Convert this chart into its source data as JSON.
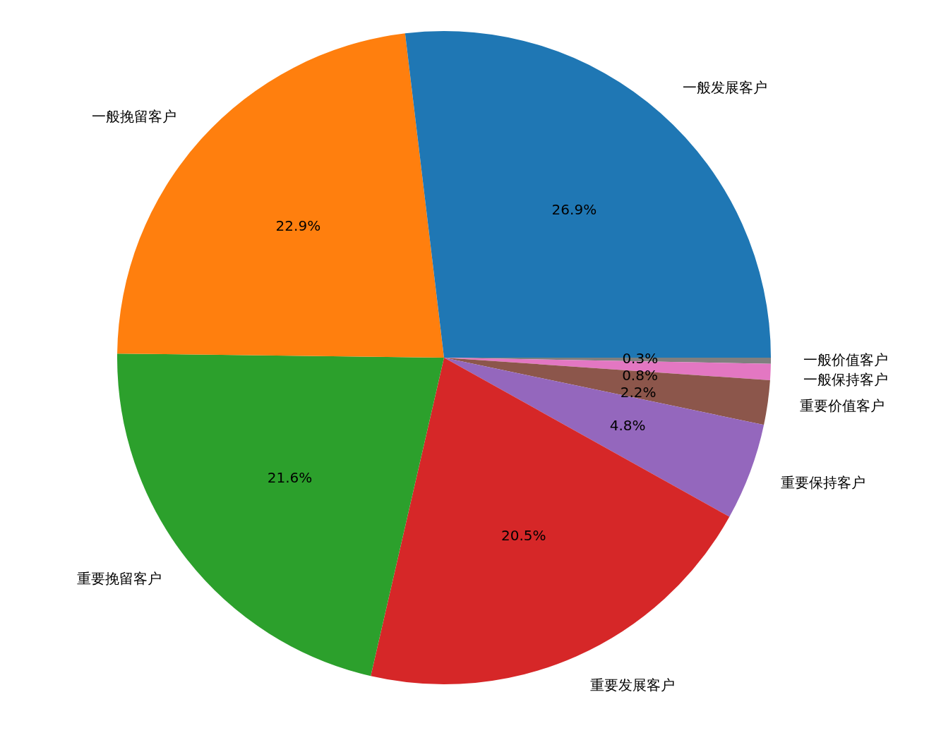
{
  "chart_data": {
    "type": "pie",
    "categories": [
      "一般发展客户",
      "一般挽留客户",
      "重要挽留客户",
      "重要发展客户",
      "重要保持客户",
      "重要价值客户",
      "一般保持客户",
      "一般价值客户"
    ],
    "values": [
      26.9,
      22.9,
      21.6,
      20.5,
      4.8,
      2.2,
      0.8,
      0.3
    ],
    "value_labels": [
      "26.9%",
      "22.9%",
      "21.6%",
      "20.5%",
      "4.8%",
      "2.2%",
      "0.8%",
      "0.3%"
    ],
    "colors": [
      "#1f77b4",
      "#ff7f0e",
      "#2ca02c",
      "#d62728",
      "#9467bd",
      "#8c564b",
      "#e377c2",
      "#7f7f7f"
    ],
    "legend": false
  }
}
